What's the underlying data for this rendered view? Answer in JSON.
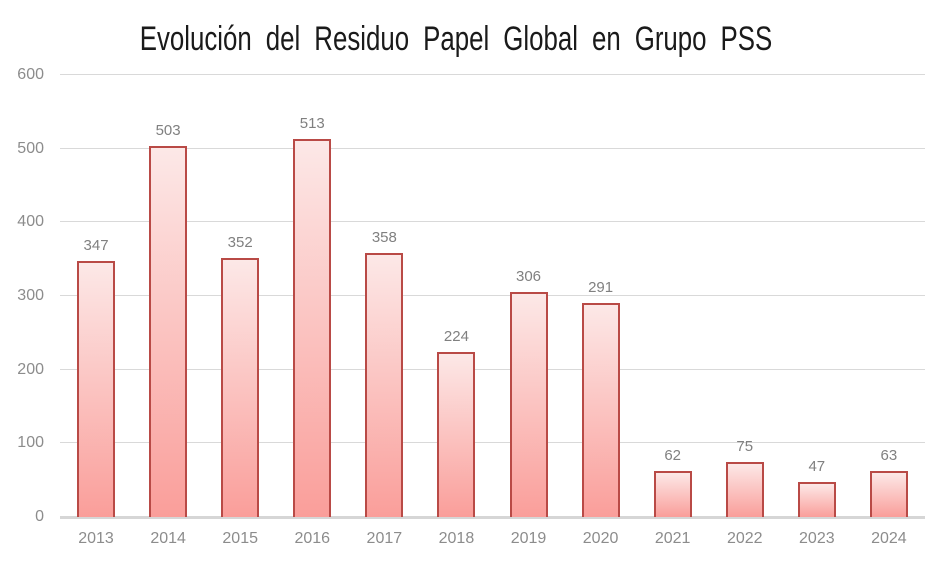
{
  "chart_data": {
    "type": "bar",
    "title": "Evolución del Residuo Papel Global en Grupo PSS",
    "categories": [
      "2013",
      "2014",
      "2015",
      "2016",
      "2017",
      "2018",
      "2019",
      "2020",
      "2021",
      "2022",
      "2023",
      "2024"
    ],
    "values": [
      347,
      503,
      352,
      513,
      358,
      224,
      306,
      291,
      62,
      75,
      47,
      63
    ],
    "xlabel": "",
    "ylabel": "",
    "ylim": [
      0,
      600
    ],
    "yticks": [
      0,
      100,
      200,
      300,
      400,
      500,
      600
    ],
    "grid": true,
    "legend": false,
    "data_labels": true,
    "colors": {
      "background": "#ffffff",
      "title_color": "#1a1a1a",
      "bar_border": "#b94a46",
      "bar_fill_top": "#fce8e7",
      "bar_fill_bottom": "#fa9e9a",
      "gridline": "#d9d9d9",
      "gridline_zero": "#d6d6d6",
      "tick_label_color": "#8c8c8c",
      "data_label_color": "#808080"
    }
  }
}
